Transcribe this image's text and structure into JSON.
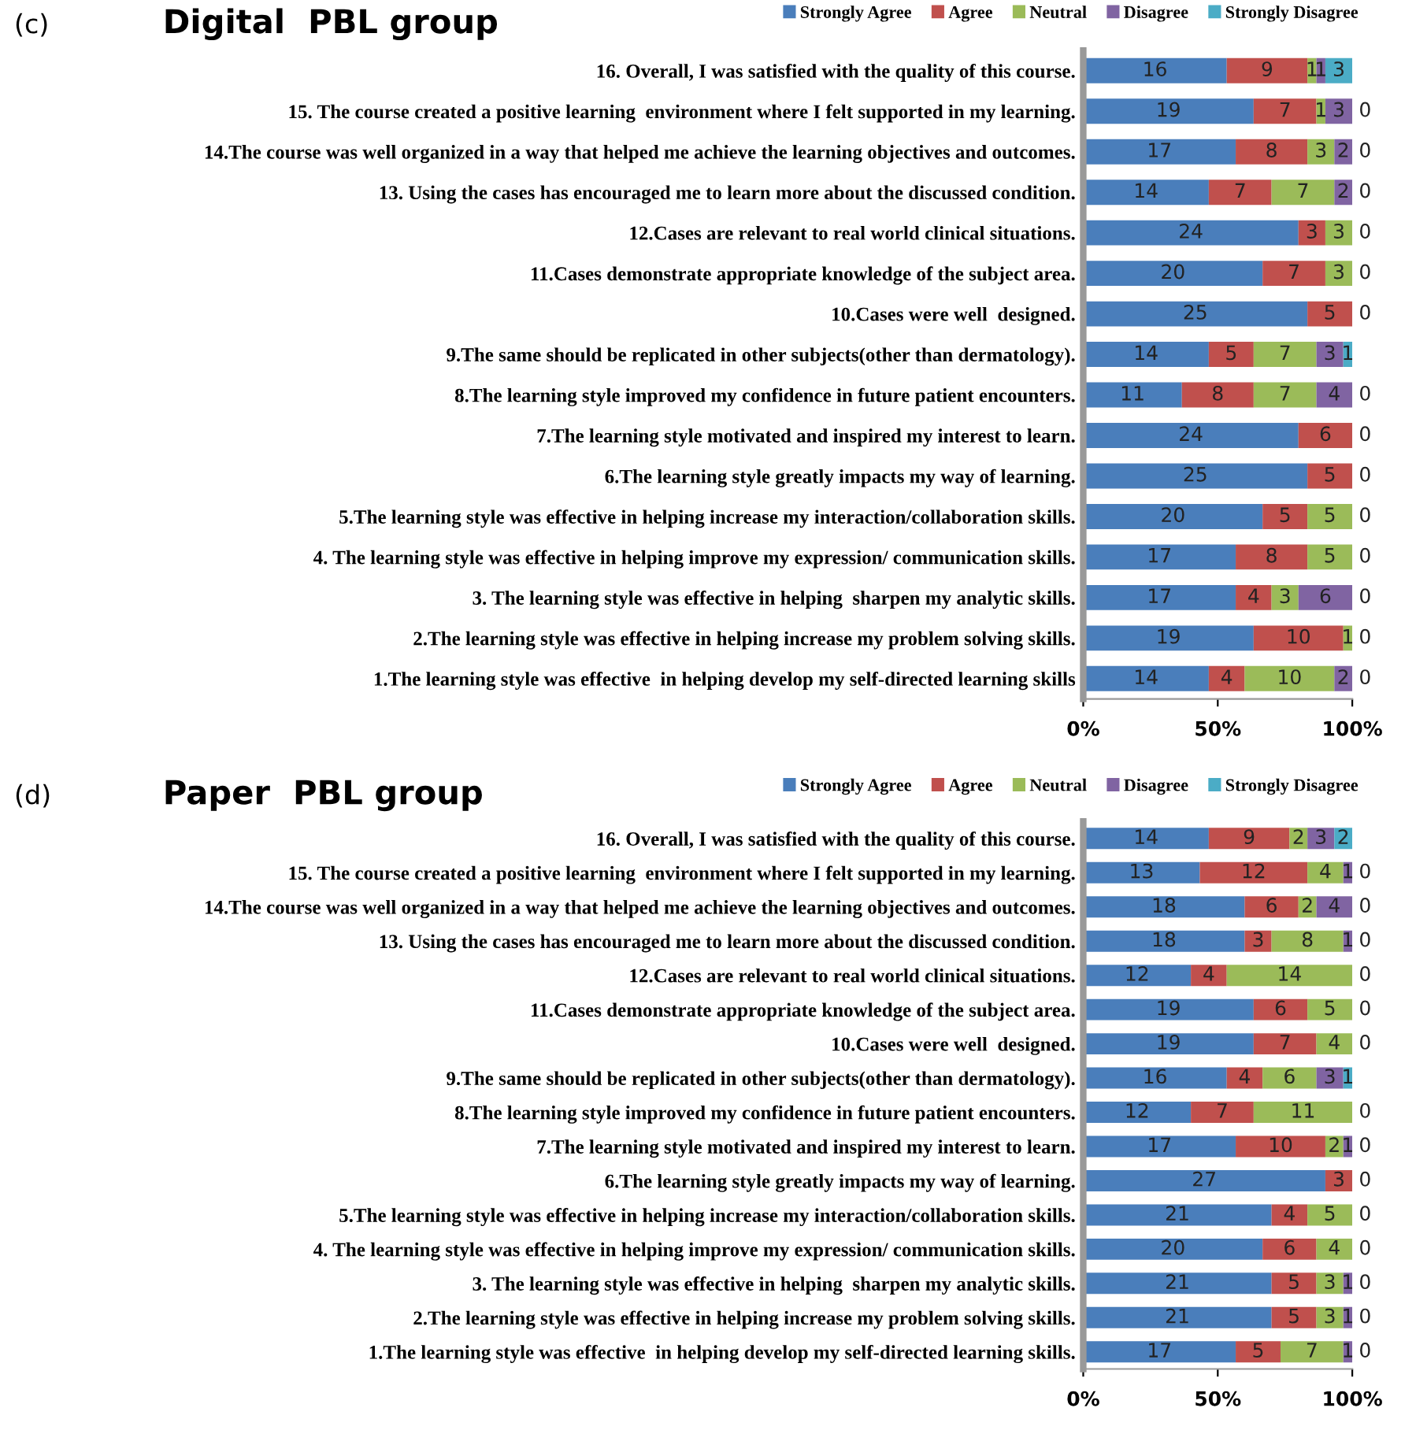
{
  "chart_data": [
    {
      "type": "bar",
      "orientation": "horizontal",
      "stacked": true,
      "title": "Digital  PBL group",
      "annotations": [
        "(c)",
        "0%",
        "50%",
        "100%"
      ],
      "legend": "top left",
      "categories": [
        "16. Overall, I was satisfied with the quality of this course.",
        "15. The course created a positive learning  environment where I felt supported in my learning.",
        "14.The course was well organized in a way that helped me achieve the learning objectives and outcomes.",
        "13. Using the cases has encouraged me to learn more about the discussed condition.",
        "12.Cases are relevant to real world clinical situations.",
        "11.Cases demonstrate appropriate knowledge of the subject area.",
        "10.Cases were well  designed.",
        "9.The same should be replicated in other subjects(other than dermatology).",
        "8.The learning style improved my confidence in future patient encounters.",
        "7.The learning style motivated and inspired my interest to learn.",
        "6.The learning style greatly impacts my way of learning.",
        "5.The learning style was effective in helping increase my interaction/collaboration skills.",
        "4. The learning style was effective in helping improve my expression/ communication skills.",
        "3. The learning style was effective in helping  sharpen my analytic skills.",
        "2.The learning style was effective in helping increase my problem solving skills.",
        "1.The learning style was effective  in helping develop my self-directed learning skills"
      ],
      "xlim": [
        0,
        30
      ],
      "xticks": [
        {
          "value": 0,
          "label": null
        },
        {
          "value": 15,
          "label": null
        },
        {
          "value": 30,
          "label": null
        }
      ],
      "series": [
        {
          "name": "Strongly Agree",
          "color": "#4a7ebb",
          "values": [
            16,
            19,
            17,
            14,
            24,
            20,
            25,
            14,
            11,
            24,
            25,
            20,
            17,
            17,
            19,
            14
          ],
          "value_labels": [
            "16",
            "19",
            "17",
            "14",
            "24",
            "20",
            "25",
            "14",
            "11",
            "24",
            "25",
            "20",
            "17",
            "17",
            "19",
            "14"
          ]
        },
        {
          "name": "Agree",
          "color": "#c0504d",
          "values": [
            9,
            7,
            8,
            7,
            3,
            7,
            5,
            5,
            8,
            6,
            5,
            5,
            8,
            4,
            10,
            4
          ],
          "value_labels": [
            "9",
            "7",
            "8",
            "7",
            "3",
            "7",
            "5",
            "5",
            "8",
            "6",
            "5",
            "5",
            "8",
            "4",
            "10",
            "4"
          ]
        },
        {
          "name": "Neutral",
          "color": "#9bbb59",
          "values": [
            1,
            1,
            3,
            7,
            3,
            3,
            0,
            7,
            7,
            0,
            0,
            5,
            5,
            3,
            1,
            10
          ],
          "value_labels": [
            "1",
            "1",
            "3",
            "7",
            "3",
            "3",
            null,
            "7",
            "7",
            null,
            null,
            "5",
            "5",
            "3",
            "1",
            "10"
          ]
        },
        {
          "name": "Disagree",
          "color": "#8064a2",
          "values": [
            1,
            3,
            2,
            2,
            0,
            0,
            0,
            3,
            4,
            0,
            0,
            0,
            0,
            6,
            0,
            2
          ],
          "value_labels": [
            "1",
            "3",
            "2",
            "2",
            null,
            null,
            null,
            "3",
            "4",
            null,
            null,
            null,
            null,
            "6",
            null,
            "2"
          ]
        },
        {
          "name": "Strongly Disagree",
          "color": "#4bacc6",
          "values": [
            3,
            0,
            0,
            0,
            0,
            0,
            0,
            1,
            0,
            0,
            0,
            0,
            0,
            0,
            0,
            0
          ],
          "value_labels": [
            "3",
            "0",
            "0",
            "0",
            "0",
            "0",
            "0",
            "1",
            "0",
            "0",
            "0",
            "0",
            "0",
            "0",
            "0",
            "0"
          ]
        }
      ]
    },
    {
      "type": "bar",
      "orientation": "horizontal",
      "stacked": true,
      "title": "Paper  PBL group",
      "annotations": [
        "(d)",
        "0%",
        "50%",
        "100%"
      ],
      "legend": "top left",
      "categories": [
        "16. Overall, I was satisfied with the quality of this course.",
        "15. The course created a positive learning  environment where I felt supported in my learning.",
        "14.The course was well organized in a way that helped me achieve the learning objectives and outcomes.",
        "13. Using the cases has encouraged me to learn more about the discussed condition.",
        "12.Cases are relevant to real world clinical situations.",
        "11.Cases demonstrate appropriate knowledge of the subject area.",
        "10.Cases were well  designed.",
        "9.The same should be replicated in other subjects(other than dermatology).",
        "8.The learning style improved my confidence in future patient encounters.",
        "7.The learning style motivated and inspired my interest to learn.",
        "6.The learning style greatly impacts my way of learning.",
        "5.The learning style was effective in helping increase my interaction/collaboration skills.",
        "4. The learning style was effective in helping improve my expression/ communication skills.",
        "3. The learning style was effective in helping  sharpen my analytic skills.",
        "2.The learning style was effective in helping increase my problem solving skills.",
        "1.The learning style was effective  in helping develop my self-directed learning skills."
      ],
      "xlim": [
        0,
        30
      ],
      "xticks": [
        {
          "value": 0,
          "label": null
        },
        {
          "value": 15,
          "label": null
        },
        {
          "value": 30,
          "label": null
        }
      ],
      "series": [
        {
          "name": "Strongly Agree",
          "color": "#4a7ebb",
          "values": [
            14,
            13,
            18,
            18,
            12,
            19,
            19,
            16,
            12,
            17,
            27,
            21,
            20,
            21,
            21,
            17
          ],
          "value_labels": [
            "14",
            "13",
            "18",
            "18",
            "12",
            "19",
            "19",
            "16",
            "12",
            "17",
            "27",
            "21",
            "20",
            "21",
            "21",
            "17"
          ]
        },
        {
          "name": "Agree",
          "color": "#c0504d",
          "values": [
            9,
            12,
            6,
            3,
            4,
            6,
            7,
            4,
            7,
            10,
            3,
            4,
            6,
            5,
            5,
            5
          ],
          "value_labels": [
            "9",
            "12",
            "6",
            "3",
            "4",
            "6",
            "7",
            "4",
            "7",
            "10",
            "3",
            "4",
            "6",
            "5",
            "5",
            "5"
          ]
        },
        {
          "name": "Neutral",
          "color": "#9bbb59",
          "values": [
            2,
            4,
            2,
            8,
            14,
            5,
            4,
            6,
            11,
            2,
            0,
            5,
            4,
            3,
            3,
            7
          ],
          "value_labels": [
            "2",
            "4",
            "2",
            "8",
            "14",
            "5",
            "4",
            "6",
            "11",
            "2",
            null,
            "5",
            "4",
            "3",
            "3",
            "7"
          ]
        },
        {
          "name": "Disagree",
          "color": "#8064a2",
          "values": [
            3,
            1,
            4,
            1,
            0,
            0,
            0,
            3,
            0,
            1,
            0,
            0,
            0,
            1,
            1,
            1
          ],
          "value_labels": [
            "3",
            "1",
            "4",
            "1",
            null,
            null,
            null,
            "3",
            null,
            "1",
            null,
            null,
            null,
            "1",
            "1",
            "1"
          ]
        },
        {
          "name": "Strongly Disagree",
          "color": "#4bacc6",
          "values": [
            2,
            0,
            0,
            0,
            0,
            0,
            0,
            1,
            0,
            0,
            0,
            0,
            0,
            0,
            0,
            0
          ],
          "value_labels": [
            "2",
            "0",
            "0",
            "0",
            "0",
            "0",
            "0",
            "1",
            "0",
            "0",
            "0",
            "0",
            "0",
            "0",
            "0",
            "0"
          ]
        }
      ]
    }
  ]
}
